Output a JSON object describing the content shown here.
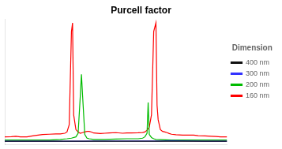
{
  "chart_data": {
    "type": "line",
    "title": "Purcell factor",
    "legend_title": "Dimension",
    "legend": "right",
    "grid": false,
    "tick_labels": false,
    "xlim": [
      0,
      100
    ],
    "ylim": [
      -0.02,
      1.0
    ],
    "series": [
      {
        "name": "400 nm",
        "color": "#111111",
        "x": [
          0,
          10,
          20,
          30,
          40,
          50,
          60,
          70,
          80,
          90,
          100
        ],
        "values": [
          0.005,
          0.005,
          0.005,
          0.005,
          0.005,
          0.005,
          0.005,
          0.005,
          0.005,
          0.005,
          0.005
        ]
      },
      {
        "name": "300 nm",
        "color": "#3333ff",
        "x": [
          0,
          5,
          10,
          15,
          20,
          25,
          30,
          35,
          40,
          45,
          50,
          55,
          60,
          65,
          68,
          70,
          75,
          80,
          85,
          90,
          95,
          100
        ],
        "values": [
          0.005,
          0.005,
          0.005,
          0.005,
          0.005,
          0.005,
          0.005,
          0.005,
          0.006,
          0.007,
          0.007,
          0.007,
          0.006,
          0.006,
          0.007,
          0.006,
          0.01,
          0.008,
          0.006,
          0.005,
          0.005,
          0.005
        ]
      },
      {
        "name": "200 nm",
        "color": "#00bb00",
        "x": [
          0,
          5,
          10,
          15,
          20,
          25,
          28,
          30,
          32,
          33,
          34,
          34.5,
          35,
          36,
          37,
          38,
          40,
          45,
          50,
          55,
          60,
          62,
          63,
          64,
          64.5,
          65,
          66,
          67,
          68,
          70,
          75,
          80,
          85,
          90,
          95,
          100
        ],
        "values": [
          0.015,
          0.015,
          0.015,
          0.015,
          0.015,
          0.02,
          0.025,
          0.03,
          0.04,
          0.07,
          0.38,
          0.55,
          0.38,
          0.06,
          0.03,
          0.025,
          0.02,
          0.02,
          0.022,
          0.025,
          0.025,
          0.03,
          0.04,
          0.07,
          0.32,
          0.06,
          0.035,
          0.025,
          0.02,
          0.018,
          0.015,
          0.015,
          0.015,
          0.015,
          0.015,
          0.015
        ]
      },
      {
        "name": "160 nm",
        "color": "#ff0000",
        "x": [
          0,
          3,
          5,
          7,
          10,
          13,
          15,
          17,
          20,
          23,
          25,
          27,
          28,
          29,
          30,
          30.5,
          31,
          32,
          33,
          34,
          35,
          36,
          37,
          38,
          39,
          40,
          43,
          45,
          47,
          50,
          53,
          55,
          57,
          60,
          62,
          63,
          64,
          65,
          66,
          67,
          68,
          68.5,
          69,
          70,
          71,
          72,
          73,
          74,
          75,
          77,
          80,
          83,
          85,
          87,
          90,
          93,
          95,
          97,
          100
        ],
        "values": [
          0.04,
          0.042,
          0.045,
          0.04,
          0.04,
          0.05,
          0.055,
          0.06,
          0.062,
          0.065,
          0.065,
          0.07,
          0.08,
          0.14,
          0.9,
          0.97,
          0.22,
          0.1,
          0.08,
          0.07,
          0.075,
          0.08,
          0.085,
          0.085,
          0.08,
          0.072,
          0.068,
          0.07,
          0.072,
          0.075,
          0.07,
          0.072,
          0.073,
          0.074,
          0.076,
          0.08,
          0.095,
          0.12,
          0.22,
          0.9,
          0.97,
          0.3,
          0.18,
          0.1,
          0.085,
          0.08,
          0.075,
          0.068,
          0.062,
          0.058,
          0.055,
          0.055,
          0.055,
          0.05,
          0.048,
          0.045,
          0.043,
          0.04,
          0.04
        ]
      }
    ]
  }
}
